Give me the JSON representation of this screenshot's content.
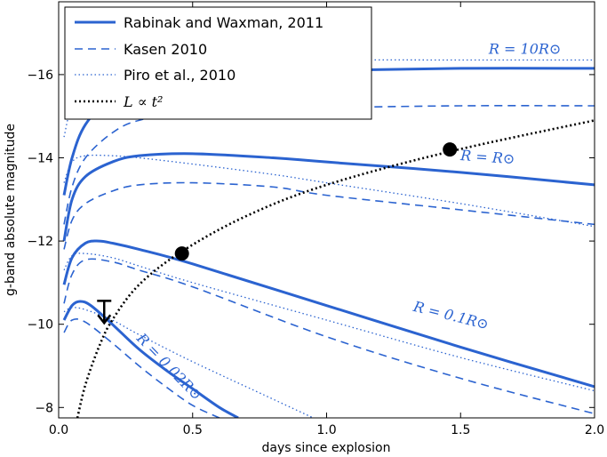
{
  "chart_data": {
    "type": "line",
    "xlabel": "days since explosion",
    "ylabel": "g-band absolute magnitude",
    "xlim": [
      0.0,
      2.0
    ],
    "ylim": [
      -7.75,
      -17.75
    ],
    "y_inverted": true,
    "x_ticks": [
      "0.0",
      "0.5",
      "1.0",
      "1.5",
      "2.0"
    ],
    "y_ticks": [
      "−16",
      "−14",
      "−12",
      "−10",
      "−8"
    ],
    "legend": {
      "placement": "top-left",
      "entries": [
        {
          "label": "Rabinak and Waxman, 2011",
          "style": "solid"
        },
        {
          "label": "Kasen 2010",
          "style": "dashed"
        },
        {
          "label": "Piro et al., 2010",
          "style": "dotted"
        },
        {
          "label": "L ∝ t²",
          "style": "dotted-black"
        }
      ]
    },
    "annotations": [
      {
        "text": "R = 10R⊙",
        "x": 1.74,
        "y": -16.5
      },
      {
        "text": "R = R⊙",
        "x": 1.6,
        "y": -13.9
      },
      {
        "text": "R = 0.1R⊙",
        "x": 1.46,
        "y": -10.1
      },
      {
        "text": "R = 0.02R⊙",
        "x": 0.4,
        "y": -8.9
      }
    ],
    "colors": {
      "model": "#2b63d0",
      "powerlaw": "#000000"
    },
    "series": [
      {
        "model": "Rabinak and Waxman, 2011",
        "radius": "10Rsun",
        "style": "solid",
        "x": [
          0.02,
          0.05,
          0.1,
          0.2,
          0.3,
          0.5,
          1.0,
          1.5,
          2.0
        ],
        "y": [
          -13.1,
          -14.0,
          -14.8,
          -15.5,
          -15.8,
          -16.0,
          -16.1,
          -16.15,
          -16.15
        ]
      },
      {
        "model": "Kasen 2010",
        "radius": "10Rsun",
        "style": "dashed",
        "x": [
          0.02,
          0.05,
          0.1,
          0.2,
          0.3,
          0.5,
          1.0,
          1.5,
          2.0
        ],
        "y": [
          -12.4,
          -13.3,
          -14.0,
          -14.6,
          -14.9,
          -15.1,
          -15.2,
          -15.25,
          -15.25
        ]
      },
      {
        "model": "Piro et al., 2010",
        "radius": "10Rsun",
        "style": "dotted",
        "x": [
          0.02,
          0.05,
          0.1,
          0.2,
          0.3,
          0.5,
          1.0,
          1.5,
          2.0
        ],
        "y": [
          -14.5,
          -15.3,
          -15.8,
          -16.1,
          -16.2,
          -16.3,
          -16.35,
          -16.35,
          -16.35
        ]
      },
      {
        "model": "Rabinak and Waxman, 2011",
        "radius": "Rsun",
        "style": "solid",
        "x": [
          0.02,
          0.05,
          0.1,
          0.2,
          0.3,
          0.5,
          0.8,
          1.0,
          1.5,
          2.0
        ],
        "y": [
          -12.0,
          -13.0,
          -13.55,
          -13.9,
          -14.05,
          -14.1,
          -14.0,
          -13.9,
          -13.65,
          -13.35
        ]
      },
      {
        "model": "Kasen 2010",
        "radius": "Rsun",
        "style": "dashed",
        "x": [
          0.02,
          0.05,
          0.1,
          0.2,
          0.3,
          0.5,
          0.8,
          1.0,
          1.5,
          2.0
        ],
        "y": [
          -11.8,
          -12.5,
          -12.9,
          -13.2,
          -13.35,
          -13.4,
          -13.3,
          -13.1,
          -12.75,
          -12.4
        ]
      },
      {
        "model": "Piro et al., 2010",
        "radius": "Rsun",
        "style": "dotted",
        "x": [
          0.02,
          0.05,
          0.1,
          0.2,
          0.3,
          0.5,
          0.8,
          1.0,
          1.5,
          2.0
        ],
        "y": [
          -13.4,
          -13.9,
          -14.05,
          -14.05,
          -14.0,
          -13.85,
          -13.6,
          -13.4,
          -12.9,
          -12.35
        ]
      },
      {
        "model": "Rabinak and Waxman, 2011",
        "radius": "0.1Rsun",
        "style": "solid",
        "x": [
          0.02,
          0.05,
          0.1,
          0.15,
          0.2,
          0.3,
          0.5,
          1.0,
          1.5,
          2.0
        ],
        "y": [
          -10.95,
          -11.6,
          -11.95,
          -12.0,
          -11.95,
          -11.8,
          -11.45,
          -10.45,
          -9.45,
          -8.5
        ]
      },
      {
        "model": "Kasen 2010",
        "radius": "0.1Rsun",
        "style": "dashed",
        "x": [
          0.02,
          0.05,
          0.1,
          0.2,
          0.3,
          0.5,
          1.0,
          1.5,
          2.0
        ],
        "y": [
          -10.5,
          -11.2,
          -11.55,
          -11.5,
          -11.3,
          -10.9,
          -9.7,
          -8.7,
          -7.85
        ]
      },
      {
        "model": "Piro et al., 2010",
        "radius": "0.1Rsun",
        "style": "dotted",
        "x": [
          0.02,
          0.05,
          0.1,
          0.2,
          0.3,
          0.5,
          1.0,
          1.5,
          2.0
        ],
        "y": [
          -11.3,
          -11.65,
          -11.7,
          -11.6,
          -11.4,
          -11.0,
          -10.1,
          -9.2,
          -8.4
        ]
      },
      {
        "model": "Rabinak and Waxman, 2011",
        "radius": "0.02Rsun",
        "style": "solid",
        "x": [
          0.02,
          0.05,
          0.08,
          0.12,
          0.2,
          0.3,
          0.4,
          0.5,
          0.6,
          0.67
        ],
        "y": [
          -10.1,
          -10.45,
          -10.55,
          -10.45,
          -10.0,
          -9.4,
          -8.9,
          -8.45,
          -8.0,
          -7.75
        ]
      },
      {
        "model": "Kasen 2010",
        "radius": "0.02Rsun",
        "style": "dashed",
        "x": [
          0.02,
          0.05,
          0.1,
          0.2,
          0.3,
          0.4,
          0.5,
          0.6
        ],
        "y": [
          -9.8,
          -10.1,
          -10.05,
          -9.55,
          -9.0,
          -8.5,
          -8.05,
          -7.75
        ]
      },
      {
        "model": "Piro et al., 2010",
        "radius": "0.02Rsun",
        "style": "dotted",
        "x": [
          0.02,
          0.05,
          0.1,
          0.2,
          0.3,
          0.5,
          0.8,
          0.95
        ],
        "y": [
          -10.3,
          -10.4,
          -10.35,
          -10.1,
          -9.75,
          -9.1,
          -8.2,
          -7.75
        ]
      },
      {
        "model": "L ∝ t²",
        "radius": "",
        "style": "dotted-black",
        "x": [
          0.07,
          0.1,
          0.15,
          0.2,
          0.3,
          0.46,
          0.7,
          1.0,
          1.46,
          2.0
        ],
        "y": [
          -7.75,
          -8.55,
          -9.45,
          -10.1,
          -10.95,
          -11.75,
          -12.6,
          -13.35,
          -14.15,
          -14.9
        ]
      }
    ],
    "points": [
      {
        "x": 0.46,
        "y": -11.7,
        "marker": "filled-circle"
      },
      {
        "x": 1.46,
        "y": -14.2,
        "marker": "filled-circle"
      }
    ],
    "upper_limit": {
      "x": 0.17,
      "y": -10.35,
      "marker": "down-arrow"
    }
  }
}
